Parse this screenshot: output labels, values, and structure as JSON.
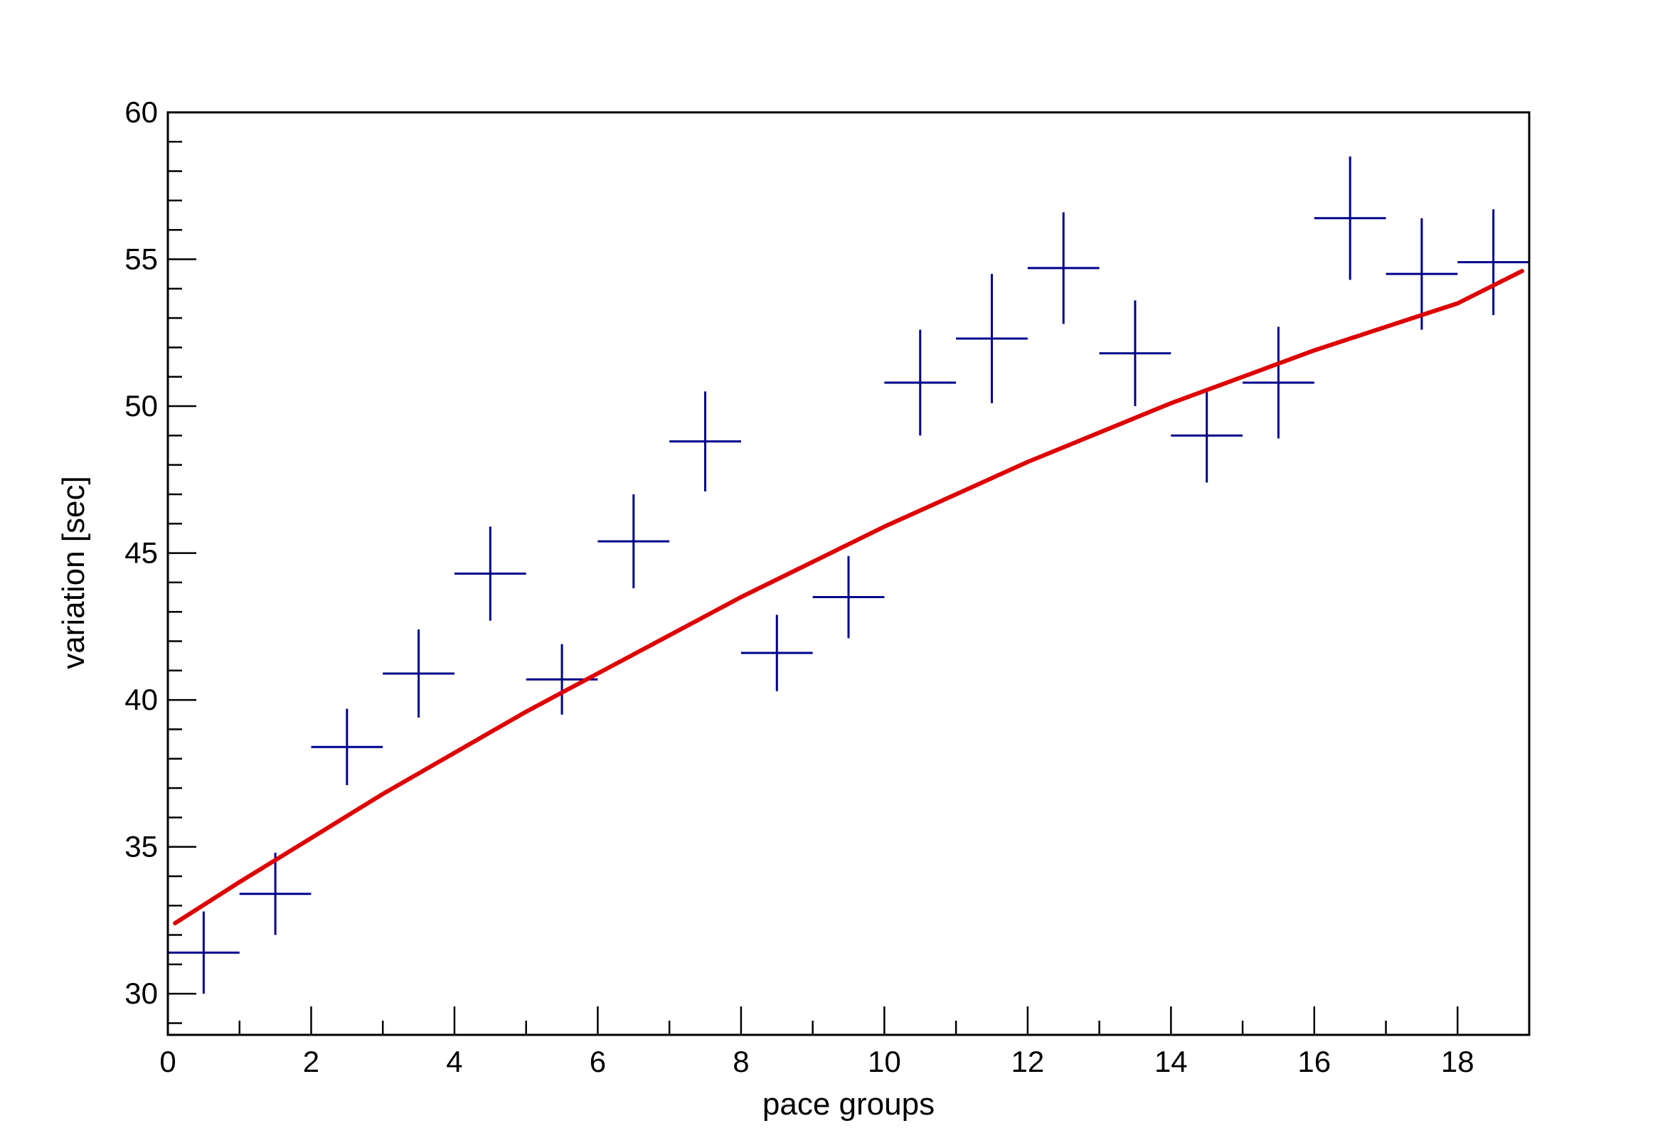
{
  "chart_data": {
    "type": "scatter",
    "title": "",
    "xlabel": "pace groups",
    "ylabel": "variation [sec]",
    "xlim": [
      0,
      19
    ],
    "ylim": [
      28.6,
      60
    ],
    "x_ticks": [
      "0",
      "2",
      "4",
      "6",
      "8",
      "10",
      "12",
      "14",
      "16",
      "18"
    ],
    "y_ticks": [
      "30",
      "35",
      "40",
      "45",
      "50",
      "55",
      "60"
    ],
    "grid": false,
    "series": [
      {
        "kind": "points-with-errors",
        "color": "#00008b",
        "points": [
          {
            "x": 0.5,
            "y": 31.4,
            "xerr": 0.5,
            "yerr": 1.4
          },
          {
            "x": 1.5,
            "y": 33.4,
            "xerr": 0.5,
            "yerr": 1.4
          },
          {
            "x": 2.5,
            "y": 38.4,
            "xerr": 0.5,
            "yerr": 1.3
          },
          {
            "x": 3.5,
            "y": 40.9,
            "xerr": 0.5,
            "yerr": 1.5
          },
          {
            "x": 4.5,
            "y": 44.3,
            "xerr": 0.5,
            "yerr": 1.6
          },
          {
            "x": 5.5,
            "y": 40.7,
            "xerr": 0.5,
            "yerr": 1.2
          },
          {
            "x": 6.5,
            "y": 45.4,
            "xerr": 0.5,
            "yerr": 1.6
          },
          {
            "x": 7.5,
            "y": 48.8,
            "xerr": 0.5,
            "yerr": 1.7
          },
          {
            "x": 8.5,
            "y": 41.6,
            "xerr": 0.5,
            "yerr": 1.3
          },
          {
            "x": 9.5,
            "y": 43.5,
            "xerr": 0.5,
            "yerr": 1.4
          },
          {
            "x": 10.5,
            "y": 50.8,
            "xerr": 0.5,
            "yerr": 1.8
          },
          {
            "x": 11.5,
            "y": 52.3,
            "xerr": 0.5,
            "yerr": 2.2
          },
          {
            "x": 12.5,
            "y": 54.7,
            "xerr": 0.5,
            "yerr": 1.9
          },
          {
            "x": 13.5,
            "y": 51.8,
            "xerr": 0.5,
            "yerr": 1.8
          },
          {
            "x": 14.5,
            "y": 49.0,
            "xerr": 0.5,
            "yerr": 1.6
          },
          {
            "x": 15.5,
            "y": 50.8,
            "xerr": 0.5,
            "yerr": 1.9
          },
          {
            "x": 16.5,
            "y": 56.4,
            "xerr": 0.5,
            "yerr": 2.1
          },
          {
            "x": 17.5,
            "y": 54.5,
            "xerr": 0.5,
            "yerr": 1.9
          },
          {
            "x": 18.5,
            "y": 54.9,
            "xerr": 0.5,
            "yerr": 1.8
          }
        ]
      },
      {
        "kind": "fit-curve",
        "color": "#dd0000",
        "x": [
          0.1,
          1,
          2,
          3,
          4,
          5,
          6,
          7,
          8,
          9,
          10,
          11,
          12,
          13,
          14,
          15,
          16,
          17,
          18,
          18.9
        ],
        "y": [
          32.4,
          33.8,
          35.3,
          36.8,
          38.2,
          39.6,
          40.9,
          42.2,
          43.5,
          44.7,
          45.9,
          47.0,
          48.1,
          49.1,
          50.1,
          51.0,
          51.9,
          52.7,
          53.5,
          54.6
        ]
      }
    ]
  }
}
